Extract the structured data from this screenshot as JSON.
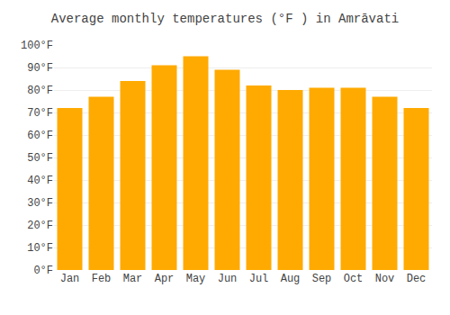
{
  "chart_data": {
    "type": "bar",
    "title": "Average monthly temperatures (°F ) in Amrāvati",
    "categories": [
      "Jan",
      "Feb",
      "Mar",
      "Apr",
      "May",
      "Jun",
      "Jul",
      "Aug",
      "Sep",
      "Oct",
      "Nov",
      "Dec"
    ],
    "values": [
      72,
      77,
      84,
      91,
      95,
      89,
      82,
      80,
      81,
      81,
      77,
      72
    ],
    "color": "#FFAA00",
    "ylim": [
      0,
      100
    ],
    "yticks": [
      {
        "value": 0,
        "label": "0°F"
      },
      {
        "value": 10,
        "label": "10°F"
      },
      {
        "value": 20,
        "label": "20°F"
      },
      {
        "value": 30,
        "label": "30°F"
      },
      {
        "value": 40,
        "label": "40°F"
      },
      {
        "value": 50,
        "label": "50°F"
      },
      {
        "value": 60,
        "label": "60°F"
      },
      {
        "value": 70,
        "label": "70°F"
      },
      {
        "value": 80,
        "label": "80°F"
      },
      {
        "value": 90,
        "label": "90°F"
      },
      {
        "value": 100,
        "label": "100°F"
      }
    ],
    "grid": true
  }
}
